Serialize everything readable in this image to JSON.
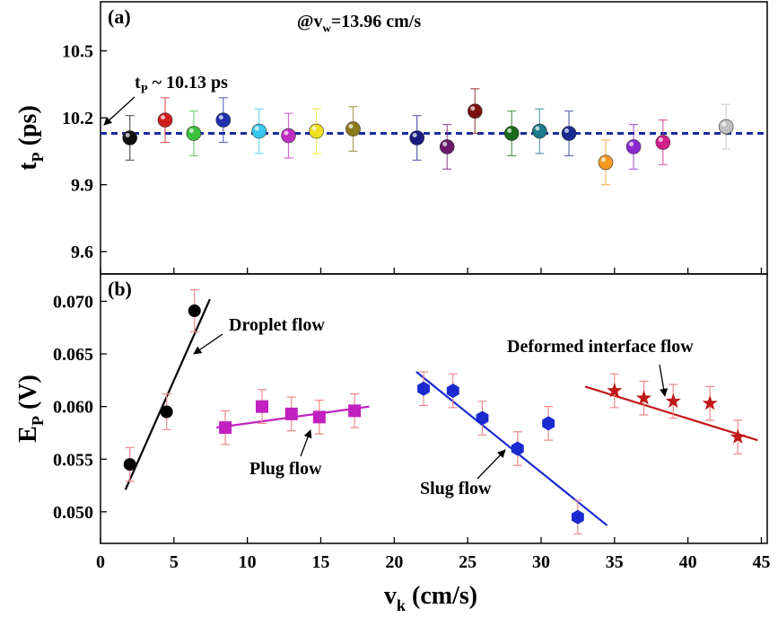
{
  "chart_data": [
    {
      "type": "scatter",
      "panel_label": "(a)",
      "annotation": {
        "base": "@v",
        "sub": "w",
        "tail": "=13.96 cm/s"
      },
      "ref_label": {
        "base": "t",
        "sub": "P",
        "tail": " ~ 10.13 ps"
      },
      "hline": 10.13,
      "hline_color": "#1a2aa0",
      "ylabel": {
        "base": "t",
        "sub": "P",
        "tail": " (ps)"
      },
      "xlim": [
        0,
        45.4
      ],
      "xticks": [
        0,
        5,
        10,
        15,
        20,
        25,
        30,
        35,
        40,
        45
      ],
      "ylim": [
        9.5,
        10.72
      ],
      "yticks": [
        9.6,
        9.9,
        10.2,
        10.5
      ],
      "series": [
        {
          "marker": "sphere",
          "x": [
            2.0,
            4.4,
            6.35,
            8.36,
            10.8,
            12.8,
            14.7,
            17.2,
            21.55,
            23.6,
            25.5,
            28.0,
            29.9,
            31.9,
            34.4,
            36.3,
            38.3,
            42.6
          ],
          "values": [
            10.11,
            10.19,
            10.13,
            10.19,
            10.14,
            10.12,
            10.14,
            10.15,
            10.11,
            10.07,
            10.23,
            10.13,
            10.14,
            10.13,
            10.0,
            10.07,
            10.09,
            10.16
          ],
          "errors": [
            0.1,
            0.1,
            0.1,
            0.1,
            0.1,
            0.1,
            0.1,
            0.1,
            0.1,
            0.1,
            0.1,
            0.1,
            0.1,
            0.1,
            0.1,
            0.1,
            0.1,
            0.1
          ],
          "colors": [
            "#111111",
            "#d01c1c",
            "#3cbf3c",
            "#1f2fb0",
            "#39c6ee",
            "#c030c0",
            "#f0e020",
            "#8a7a1a",
            "#1a1a80",
            "#6a1a6a",
            "#7a1010",
            "#1a6a1a",
            "#1a7a8a",
            "#1a2a90",
            "#f59a20",
            "#8a2ad0",
            "#d0208a",
            "#c0c0c0"
          ]
        }
      ]
    },
    {
      "type": "scatter",
      "panel_label": "(b)",
      "xlabel": {
        "base": "v",
        "sub": "k",
        "tail": " (cm/s)"
      },
      "ylabel": {
        "base": "E",
        "sub": "P",
        "tail": " (V)"
      },
      "xlim": [
        0,
        45.4
      ],
      "xticks": [
        0,
        5,
        10,
        15,
        20,
        25,
        30,
        35,
        40,
        45
      ],
      "ylim": [
        0.047,
        0.0726
      ],
      "yticks": [
        {
          "value": 0.05,
          "label": "0.050"
        },
        0.055,
        {
          "value": 0.06,
          "label": "0.060"
        },
        0.065,
        {
          "value": 0.07,
          "label": "0.070"
        }
      ],
      "error_color": "#f08a8a",
      "series": [
        {
          "name": "Droplet flow",
          "marker": "circle",
          "color": "#000000",
          "x": [
            2.0,
            4.5,
            6.4
          ],
          "values": [
            0.0545,
            0.0595,
            0.0691
          ],
          "errors": [
            0.0016,
            0.0017,
            0.002
          ],
          "fit": {
            "x": [
              1.7,
              7.45
            ],
            "values": [
              0.0521,
              0.0702
            ]
          }
        },
        {
          "name": "Plug flow",
          "marker": "square",
          "color": "#c020c0",
          "x": [
            8.5,
            11.0,
            13.0,
            14.9,
            17.3
          ],
          "values": [
            0.058,
            0.06,
            0.0593,
            0.059,
            0.0596
          ],
          "errors": [
            0.0016,
            0.0016,
            0.0016,
            0.0016,
            0.0016
          ],
          "fit": {
            "x": [
              7.9,
              18.3
            ],
            "values": [
              0.058,
              0.06
            ]
          }
        },
        {
          "name": "Slug flow",
          "marker": "hexagon",
          "color": "#1a2ad0",
          "x": [
            22.0,
            24.0,
            26.0,
            28.4,
            30.5,
            32.5
          ],
          "values": [
            0.0617,
            0.0615,
            0.0589,
            0.056,
            0.0584,
            0.0495
          ],
          "errors": [
            0.0016,
            0.0016,
            0.0016,
            0.0016,
            0.0016,
            0.0016
          ],
          "fit": {
            "x": [
              21.5,
              34.5
            ],
            "values": [
              0.0633,
              0.0487
            ]
          }
        },
        {
          "name": "Deformed interface flow",
          "marker": "star",
          "color": "#c01818",
          "x": [
            35.0,
            37.0,
            39.0,
            41.5,
            43.4
          ],
          "values": [
            0.0615,
            0.0608,
            0.0605,
            0.0603,
            0.0571
          ],
          "errors": [
            0.0016,
            0.0016,
            0.0016,
            0.0016,
            0.0016
          ],
          "fit": {
            "x": [
              33.0,
              44.75
            ],
            "values": [
              0.0619,
              0.0568
            ]
          }
        }
      ]
    }
  ]
}
